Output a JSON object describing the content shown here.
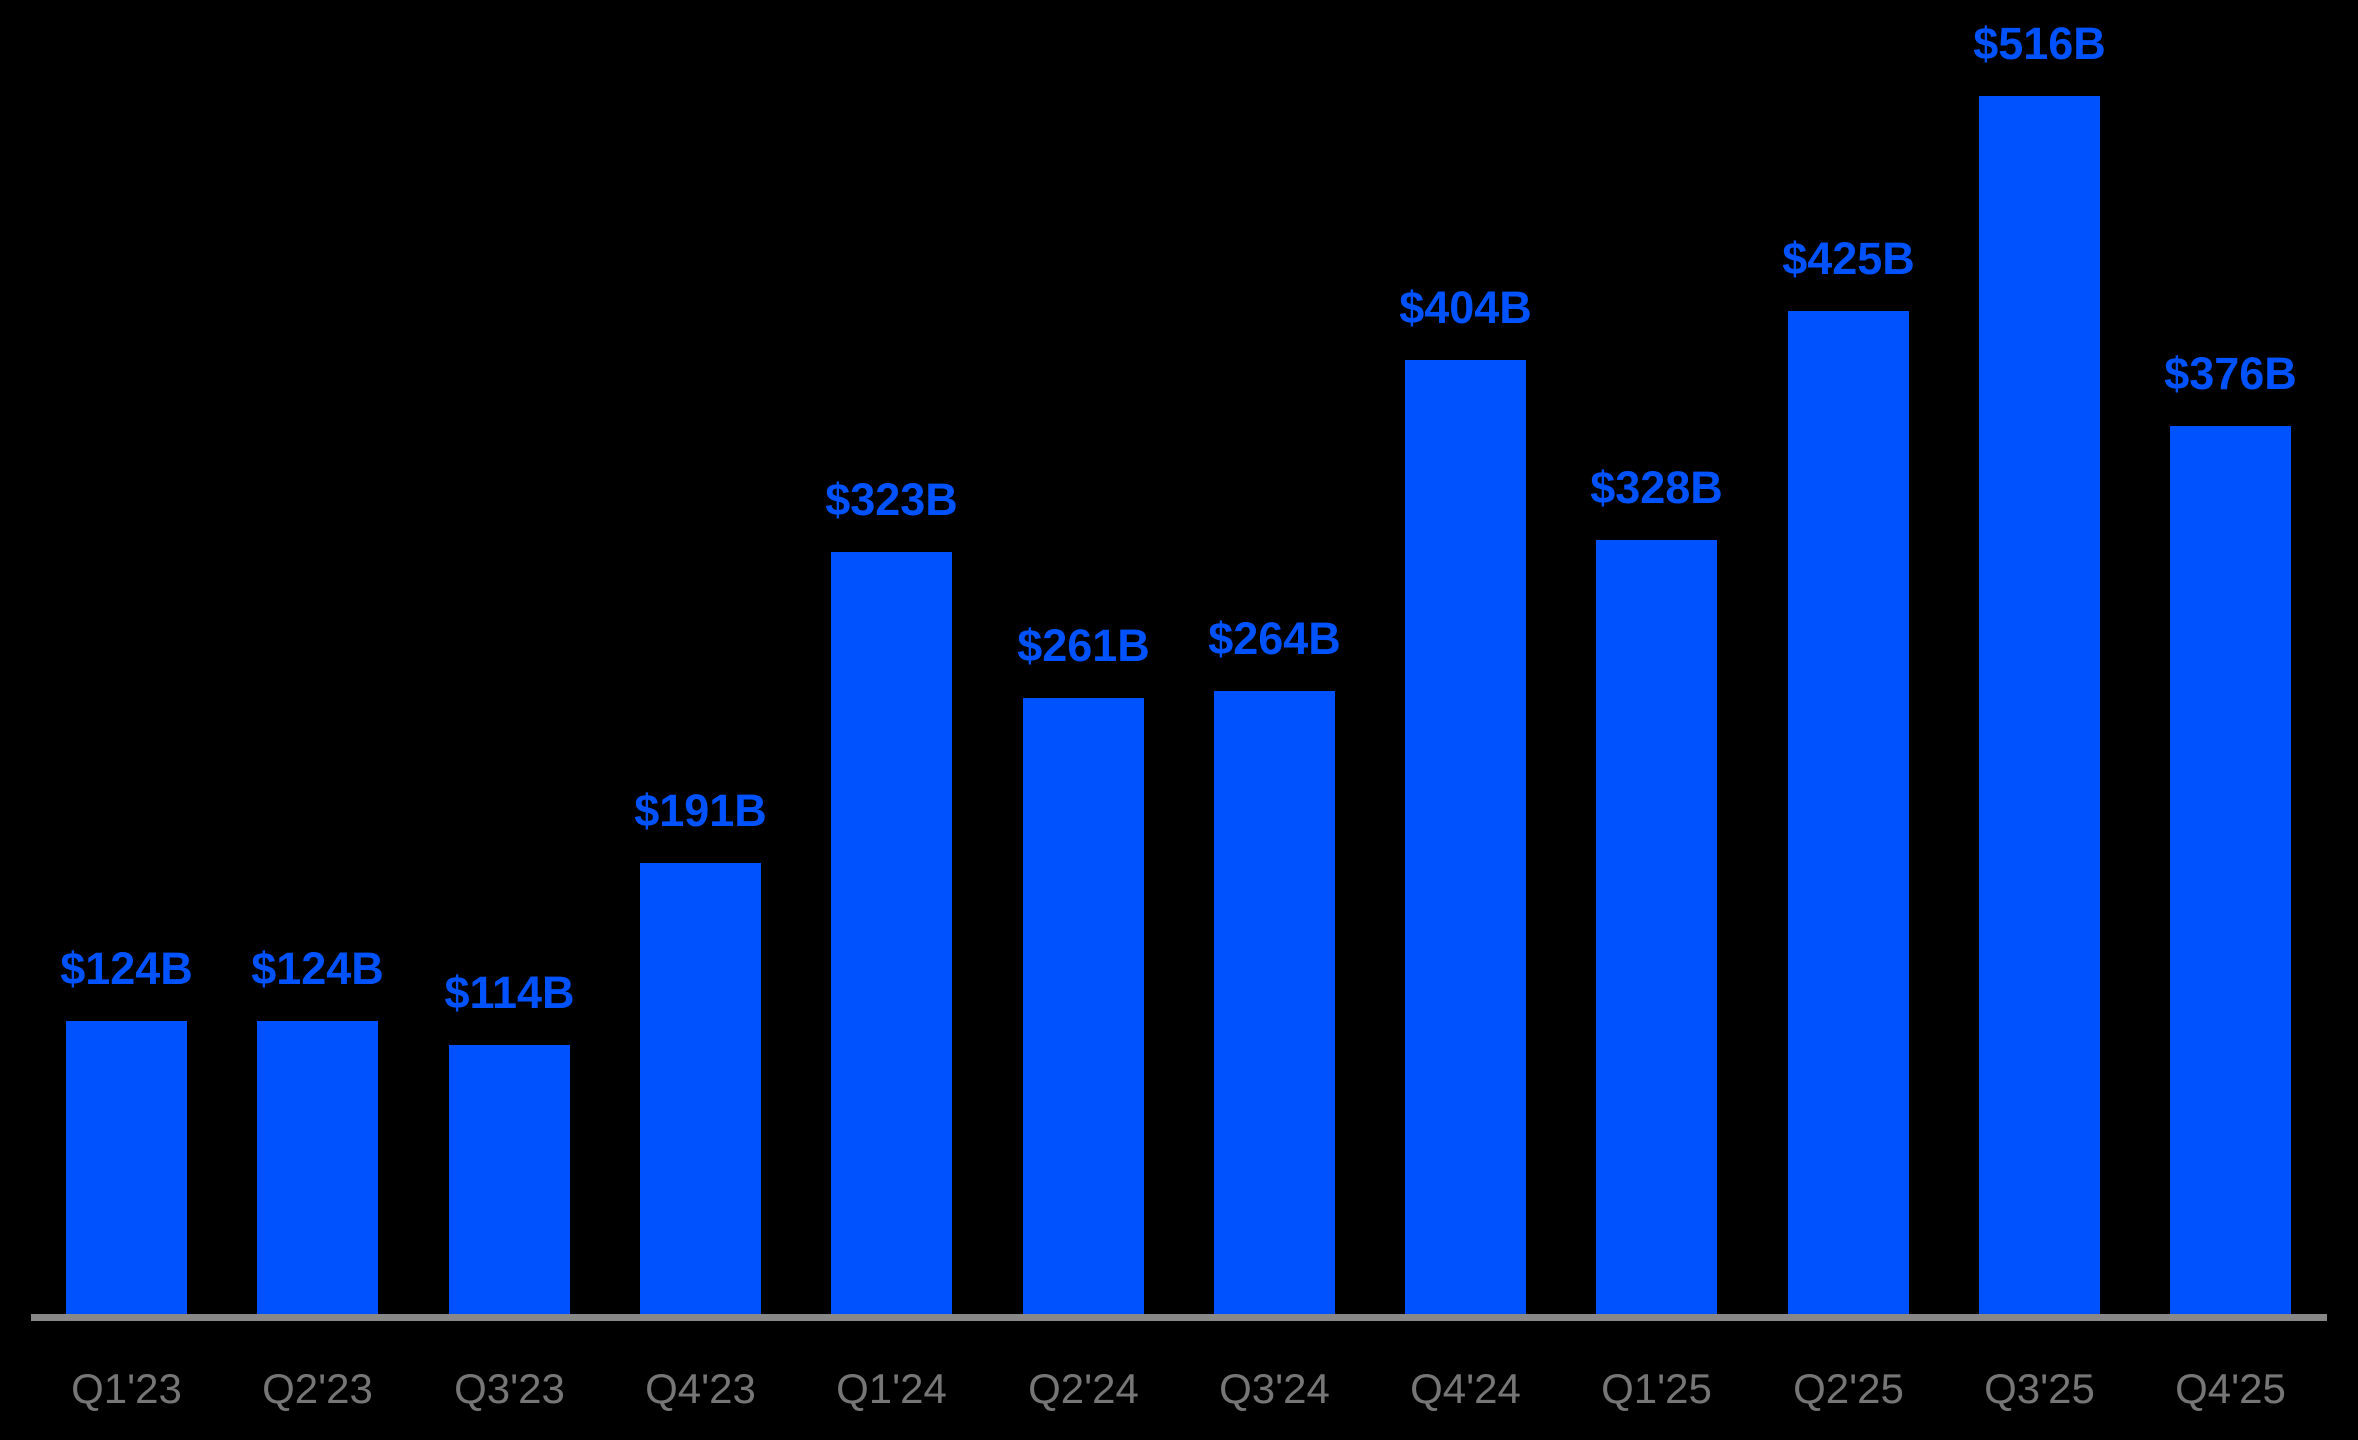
{
  "chart_data": {
    "type": "bar",
    "categories": [
      "Q1'23",
      "Q2'23",
      "Q3'23",
      "Q4'23",
      "Q1'24",
      "Q2'24",
      "Q3'24",
      "Q4'24",
      "Q1'25",
      "Q2'25",
      "Q3'25",
      "Q4'25"
    ],
    "values": [
      124,
      124,
      114,
      191,
      323,
      261,
      264,
      404,
      328,
      425,
      516,
      376
    ],
    "value_labels": [
      "$124B",
      "$124B",
      "$114B",
      "$191B",
      "$323B",
      "$261B",
      "$264B",
      "$404B",
      "$328B",
      "$425B",
      "$516B",
      "$376B"
    ],
    "title": "",
    "xlabel": "",
    "ylabel": "",
    "ylim": [
      0,
      557
    ],
    "unit": "USD billions",
    "grid": false,
    "legend": "none",
    "colors": {
      "bar": "#0052FF",
      "value_label": "#0052FF",
      "axis_label": "#767676",
      "axis_line": "#888888",
      "background": "#000000"
    }
  }
}
